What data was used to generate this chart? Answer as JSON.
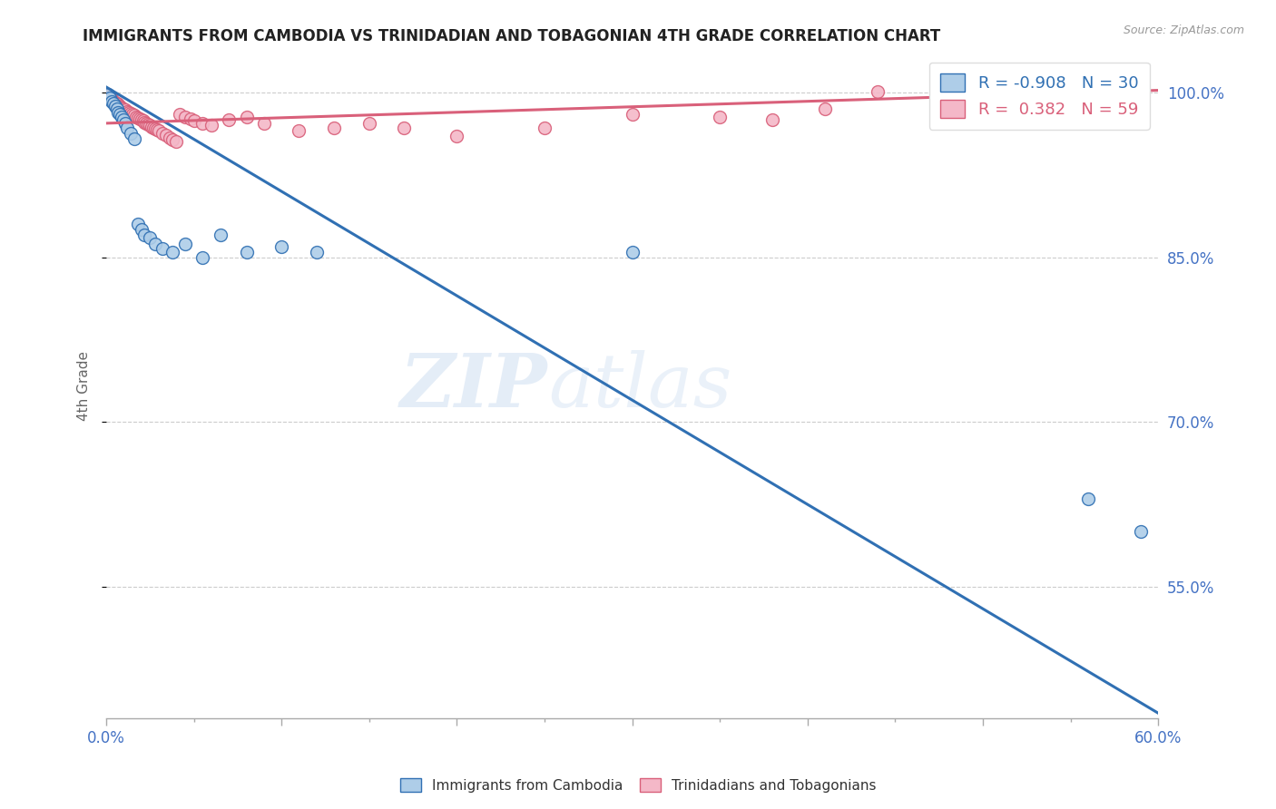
{
  "title": "IMMIGRANTS FROM CAMBODIA VS TRINIDADIAN AND TOBAGONIAN 4TH GRADE CORRELATION CHART",
  "source": "Source: ZipAtlas.com",
  "ylabel": "4th Grade",
  "y_ticks": [
    0.55,
    0.7,
    0.85,
    1.0
  ],
  "y_tick_labels": [
    "55.0%",
    "70.0%",
    "85.0%",
    "100.0%"
  ],
  "x_min": 0.0,
  "x_max": 0.6,
  "y_min": 0.43,
  "y_max": 1.035,
  "blue_color": "#aecde8",
  "pink_color": "#f4b8c8",
  "blue_line_color": "#3070b3",
  "pink_line_color": "#d9607a",
  "watermark_zip": "ZIP",
  "watermark_atlas": "atlas",
  "legend_R_blue": "-0.908",
  "legend_N_blue": "30",
  "legend_R_pink": "0.382",
  "legend_N_pink": "59",
  "blue_scatter_x": [
    0.001,
    0.002,
    0.003,
    0.004,
    0.005,
    0.006,
    0.007,
    0.008,
    0.009,
    0.01,
    0.011,
    0.012,
    0.014,
    0.016,
    0.018,
    0.02,
    0.022,
    0.025,
    0.028,
    0.032,
    0.038,
    0.045,
    0.055,
    0.065,
    0.08,
    0.1,
    0.12,
    0.3,
    0.56,
    0.59
  ],
  "blue_scatter_y": [
    0.998,
    0.995,
    0.992,
    0.99,
    0.988,
    0.985,
    0.982,
    0.98,
    0.978,
    0.975,
    0.972,
    0.968,
    0.963,
    0.958,
    0.88,
    0.875,
    0.87,
    0.868,
    0.862,
    0.858,
    0.855,
    0.862,
    0.85,
    0.87,
    0.855,
    0.86,
    0.855,
    0.855,
    0.63,
    0.6
  ],
  "pink_scatter_x": [
    0.0005,
    0.001,
    0.0015,
    0.002,
    0.003,
    0.003,
    0.004,
    0.005,
    0.006,
    0.007,
    0.008,
    0.008,
    0.009,
    0.01,
    0.011,
    0.012,
    0.013,
    0.014,
    0.015,
    0.016,
    0.017,
    0.018,
    0.019,
    0.02,
    0.021,
    0.022,
    0.023,
    0.024,
    0.025,
    0.026,
    0.027,
    0.028,
    0.029,
    0.03,
    0.032,
    0.034,
    0.036,
    0.038,
    0.04,
    0.042,
    0.045,
    0.048,
    0.05,
    0.055,
    0.06,
    0.07,
    0.08,
    0.09,
    0.11,
    0.13,
    0.15,
    0.17,
    0.2,
    0.25,
    0.3,
    0.35,
    0.38,
    0.41,
    0.44
  ],
  "pink_scatter_y": [
    0.998,
    0.997,
    0.996,
    0.995,
    0.994,
    0.993,
    0.992,
    0.991,
    0.99,
    0.989,
    0.988,
    0.987,
    0.986,
    0.985,
    0.984,
    0.983,
    0.982,
    0.981,
    0.98,
    0.979,
    0.978,
    0.977,
    0.976,
    0.975,
    0.974,
    0.973,
    0.972,
    0.971,
    0.97,
    0.969,
    0.968,
    0.967,
    0.966,
    0.965,
    0.963,
    0.961,
    0.959,
    0.957,
    0.955,
    0.98,
    0.978,
    0.976,
    0.974,
    0.972,
    0.97,
    0.975,
    0.978,
    0.972,
    0.965,
    0.968,
    0.972,
    0.968,
    0.96,
    0.968,
    0.98,
    0.978,
    0.975,
    0.985,
    1.001
  ],
  "blue_trend_x": [
    0.0,
    0.6
  ],
  "blue_trend_y": [
    1.005,
    0.435
  ],
  "pink_trend_x": [
    0.0,
    0.6
  ],
  "pink_trend_y": [
    0.972,
    1.002
  ],
  "grid_color": "#cccccc",
  "background_color": "#ffffff",
  "tick_color": "#4472c4",
  "label_color": "#666666"
}
